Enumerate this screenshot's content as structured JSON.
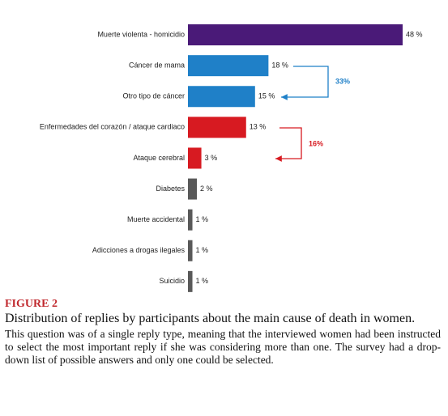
{
  "chart_data": {
    "type": "bar",
    "orientation": "horizontal",
    "categories": [
      "Muerte violenta - homicidio",
      "Cáncer de mama",
      "Otro tipo de cáncer",
      "Enfermedades del corazón / ataque cardiaco",
      "Ataque cerebral",
      "Diabetes",
      "Muerte accidental",
      "Adicciones a drogas ilegales",
      "Suicidio"
    ],
    "values": [
      48,
      18,
      15,
      13,
      3,
      2,
      1,
      1,
      1
    ],
    "value_labels": [
      "48 %",
      "18 %",
      "15 %",
      "13 %",
      "3 %",
      "2 %",
      "1 %",
      "1 %",
      "1 %"
    ],
    "colors": [
      "#4a1a78",
      "#1f80c8",
      "#1f80c8",
      "#d71a21",
      "#d71a21",
      "#595959",
      "#595959",
      "#595959",
      "#595959"
    ],
    "xlim": [
      0,
      48
    ],
    "annotations": [
      {
        "text": "33%",
        "color": "#1f80c8"
      },
      {
        "text": "16%",
        "color": "#d71a21"
      }
    ]
  },
  "caption": {
    "label": "FIGURE 2",
    "title": "Distribution of replies by participants about the main cause of death in women.",
    "text": "This question was of a single reply type, meaning that the interviewed women had been instructed to select the most important reply if she was considering more than one. The survey had a drop-down list of possible answers and only one could be selected."
  }
}
